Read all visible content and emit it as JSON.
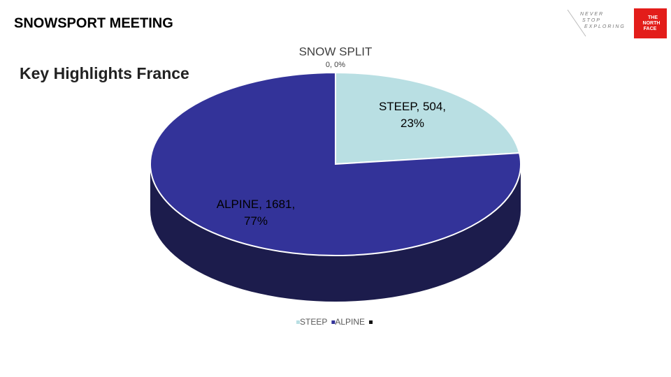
{
  "header": {
    "title": "SNOWSPORT MEETING",
    "subtitle": "Key Highlights France",
    "tagline": [
      "NEVER",
      "STOP",
      "EXPLORING"
    ],
    "logo": [
      "THE",
      "NORTH",
      "FACE"
    ]
  },
  "chart_data": {
    "type": "pie3d",
    "title": "SNOW SPLIT",
    "categories": [
      "STEEP",
      "ALPINE",
      null
    ],
    "values": [
      504,
      1681,
      0
    ],
    "value_labels": [
      "STEEP, 504, 23%",
      "ALPINE, 1681, 77%",
      "0, 0%"
    ],
    "colors": [
      "#b9dfe3",
      "#333399",
      "#111111"
    ],
    "side_colors": [
      "#8fb4b8",
      "#1c1c4c",
      "#111111"
    ],
    "legend": "bottom"
  }
}
